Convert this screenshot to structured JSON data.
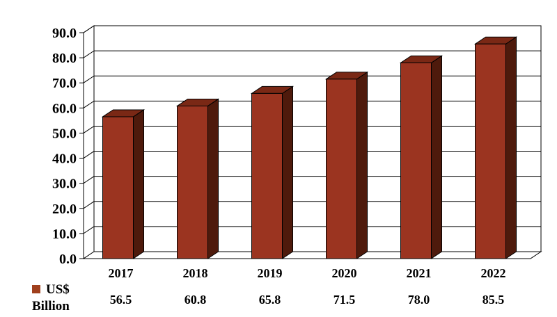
{
  "chart_data": {
    "type": "bar",
    "categories": [
      "2017",
      "2018",
      "2019",
      "2020",
      "2021",
      "2022"
    ],
    "series": [
      {
        "name": "US$ Billion",
        "values": [
          56.5,
          60.8,
          65.8,
          71.5,
          78.0,
          85.5
        ]
      }
    ],
    "value_labels": [
      "56.5",
      "60.8",
      "65.8",
      "71.5",
      "78.0",
      "85.5"
    ],
    "y_ticks": [
      "0.0",
      "10.0",
      "20.0",
      "30.0",
      "40.0",
      "50.0",
      "60.0",
      "70.0",
      "80.0",
      "90.0"
    ],
    "ylim": [
      0,
      90
    ],
    "grid": true,
    "legend": {
      "line1": "US$",
      "line2": "Billion",
      "position": "bottom-left"
    },
    "colors": {
      "bar_front": "#9b3420",
      "bar_side": "#4e1a0c",
      "bar_top": "#7a2815",
      "legend_marker": "#a0401d"
    }
  }
}
